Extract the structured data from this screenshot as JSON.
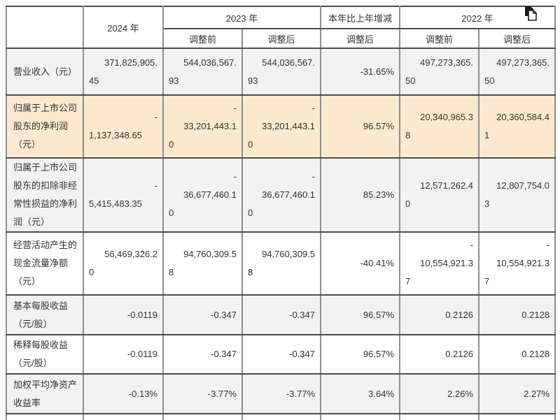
{
  "colors": {
    "highlight_row": "#fce9cf",
    "zebra_row": "#f2f2f2",
    "border_dark": "#4d4d4d",
    "border_light": "#8f8f8f",
    "text": "#333333",
    "background": "#ffffff"
  },
  "icons": {
    "copy": "copy-icon"
  },
  "table": {
    "header": {
      "y2024": "2024 年",
      "y2023": "2023 年",
      "change": "本年比上年增减",
      "y2022": "2022 年",
      "sub": [
        "调整前",
        "调整后",
        "调整后",
        "调整前",
        "调整后"
      ]
    },
    "rows": [
      {
        "bg": "gray",
        "label": [
          "营业收入（元）"
        ],
        "cells": [
          [
            "371,825,905.",
            "45"
          ],
          [
            "544,036,567.",
            "93"
          ],
          [
            "544,036,567.",
            "93"
          ],
          [
            "-31.65%"
          ],
          [
            "497,273,365.",
            "50"
          ],
          [
            "497,273,365.",
            "50"
          ]
        ]
      },
      {
        "bg": "highlight",
        "label": [
          "归属于上市公司",
          "股东的净利润",
          "（元）"
        ],
        "cells": [
          [
            "-",
            "1,137,348.65"
          ],
          [
            "-",
            "33,201,443.1",
            "0"
          ],
          [
            "-",
            "33,201,443.1",
            "0"
          ],
          [
            "96.57%"
          ],
          [
            "20,340,965.3",
            "8"
          ],
          [
            "20,360,584.4",
            "1"
          ]
        ]
      },
      {
        "bg": "gray",
        "label": [
          "归属于上市公司",
          "股东的扣除非经",
          "常性损益的净利",
          "润（元）"
        ],
        "cells": [
          [
            "-",
            "5,415,483.35"
          ],
          [
            "-",
            "36,677,460.1",
            "0"
          ],
          [
            "-",
            "36,677,460.1",
            "0"
          ],
          [
            "85.23%"
          ],
          [
            "12,571,262.4",
            "0"
          ],
          [
            "12,807,754.0",
            "3"
          ]
        ]
      },
      {
        "bg": "white",
        "label": [
          "经营活动产生的",
          "现金流量净额",
          "（元）"
        ],
        "cells": [
          [
            "56,469,326.2",
            "0"
          ],
          [
            "94,760,309.5",
            "8"
          ],
          [
            "94,760,309.5",
            "8"
          ],
          [
            "-40.41%"
          ],
          [
            "-",
            "10,554,921.3",
            "7"
          ],
          [
            "-",
            "10,554,921.3",
            "7"
          ]
        ]
      },
      {
        "bg": "gray",
        "label": [
          "基本每股收益",
          "（元/股）"
        ],
        "cells": [
          [
            "-0.0119"
          ],
          [
            "-0.347"
          ],
          [
            "-0.347"
          ],
          [
            "96.57%"
          ],
          [
            "0.2126"
          ],
          [
            "0.2128"
          ]
        ]
      },
      {
        "bg": "white",
        "label": [
          "稀释每股收益",
          "（元/股）"
        ],
        "cells": [
          [
            "-0.0119"
          ],
          [
            "-0.347"
          ],
          [
            "-0.347"
          ],
          [
            "96.57%"
          ],
          [
            "0.2126"
          ],
          [
            "0.2128"
          ]
        ]
      },
      {
        "bg": "gray",
        "label": [
          "加权平均净资产",
          "收益率"
        ],
        "cells": [
          [
            "-0.13%"
          ],
          [
            "-3.77%"
          ],
          [
            "-3.77%"
          ],
          [
            "3.64%"
          ],
          [
            "2.26%"
          ],
          [
            "2.27%"
          ]
        ]
      }
    ]
  }
}
